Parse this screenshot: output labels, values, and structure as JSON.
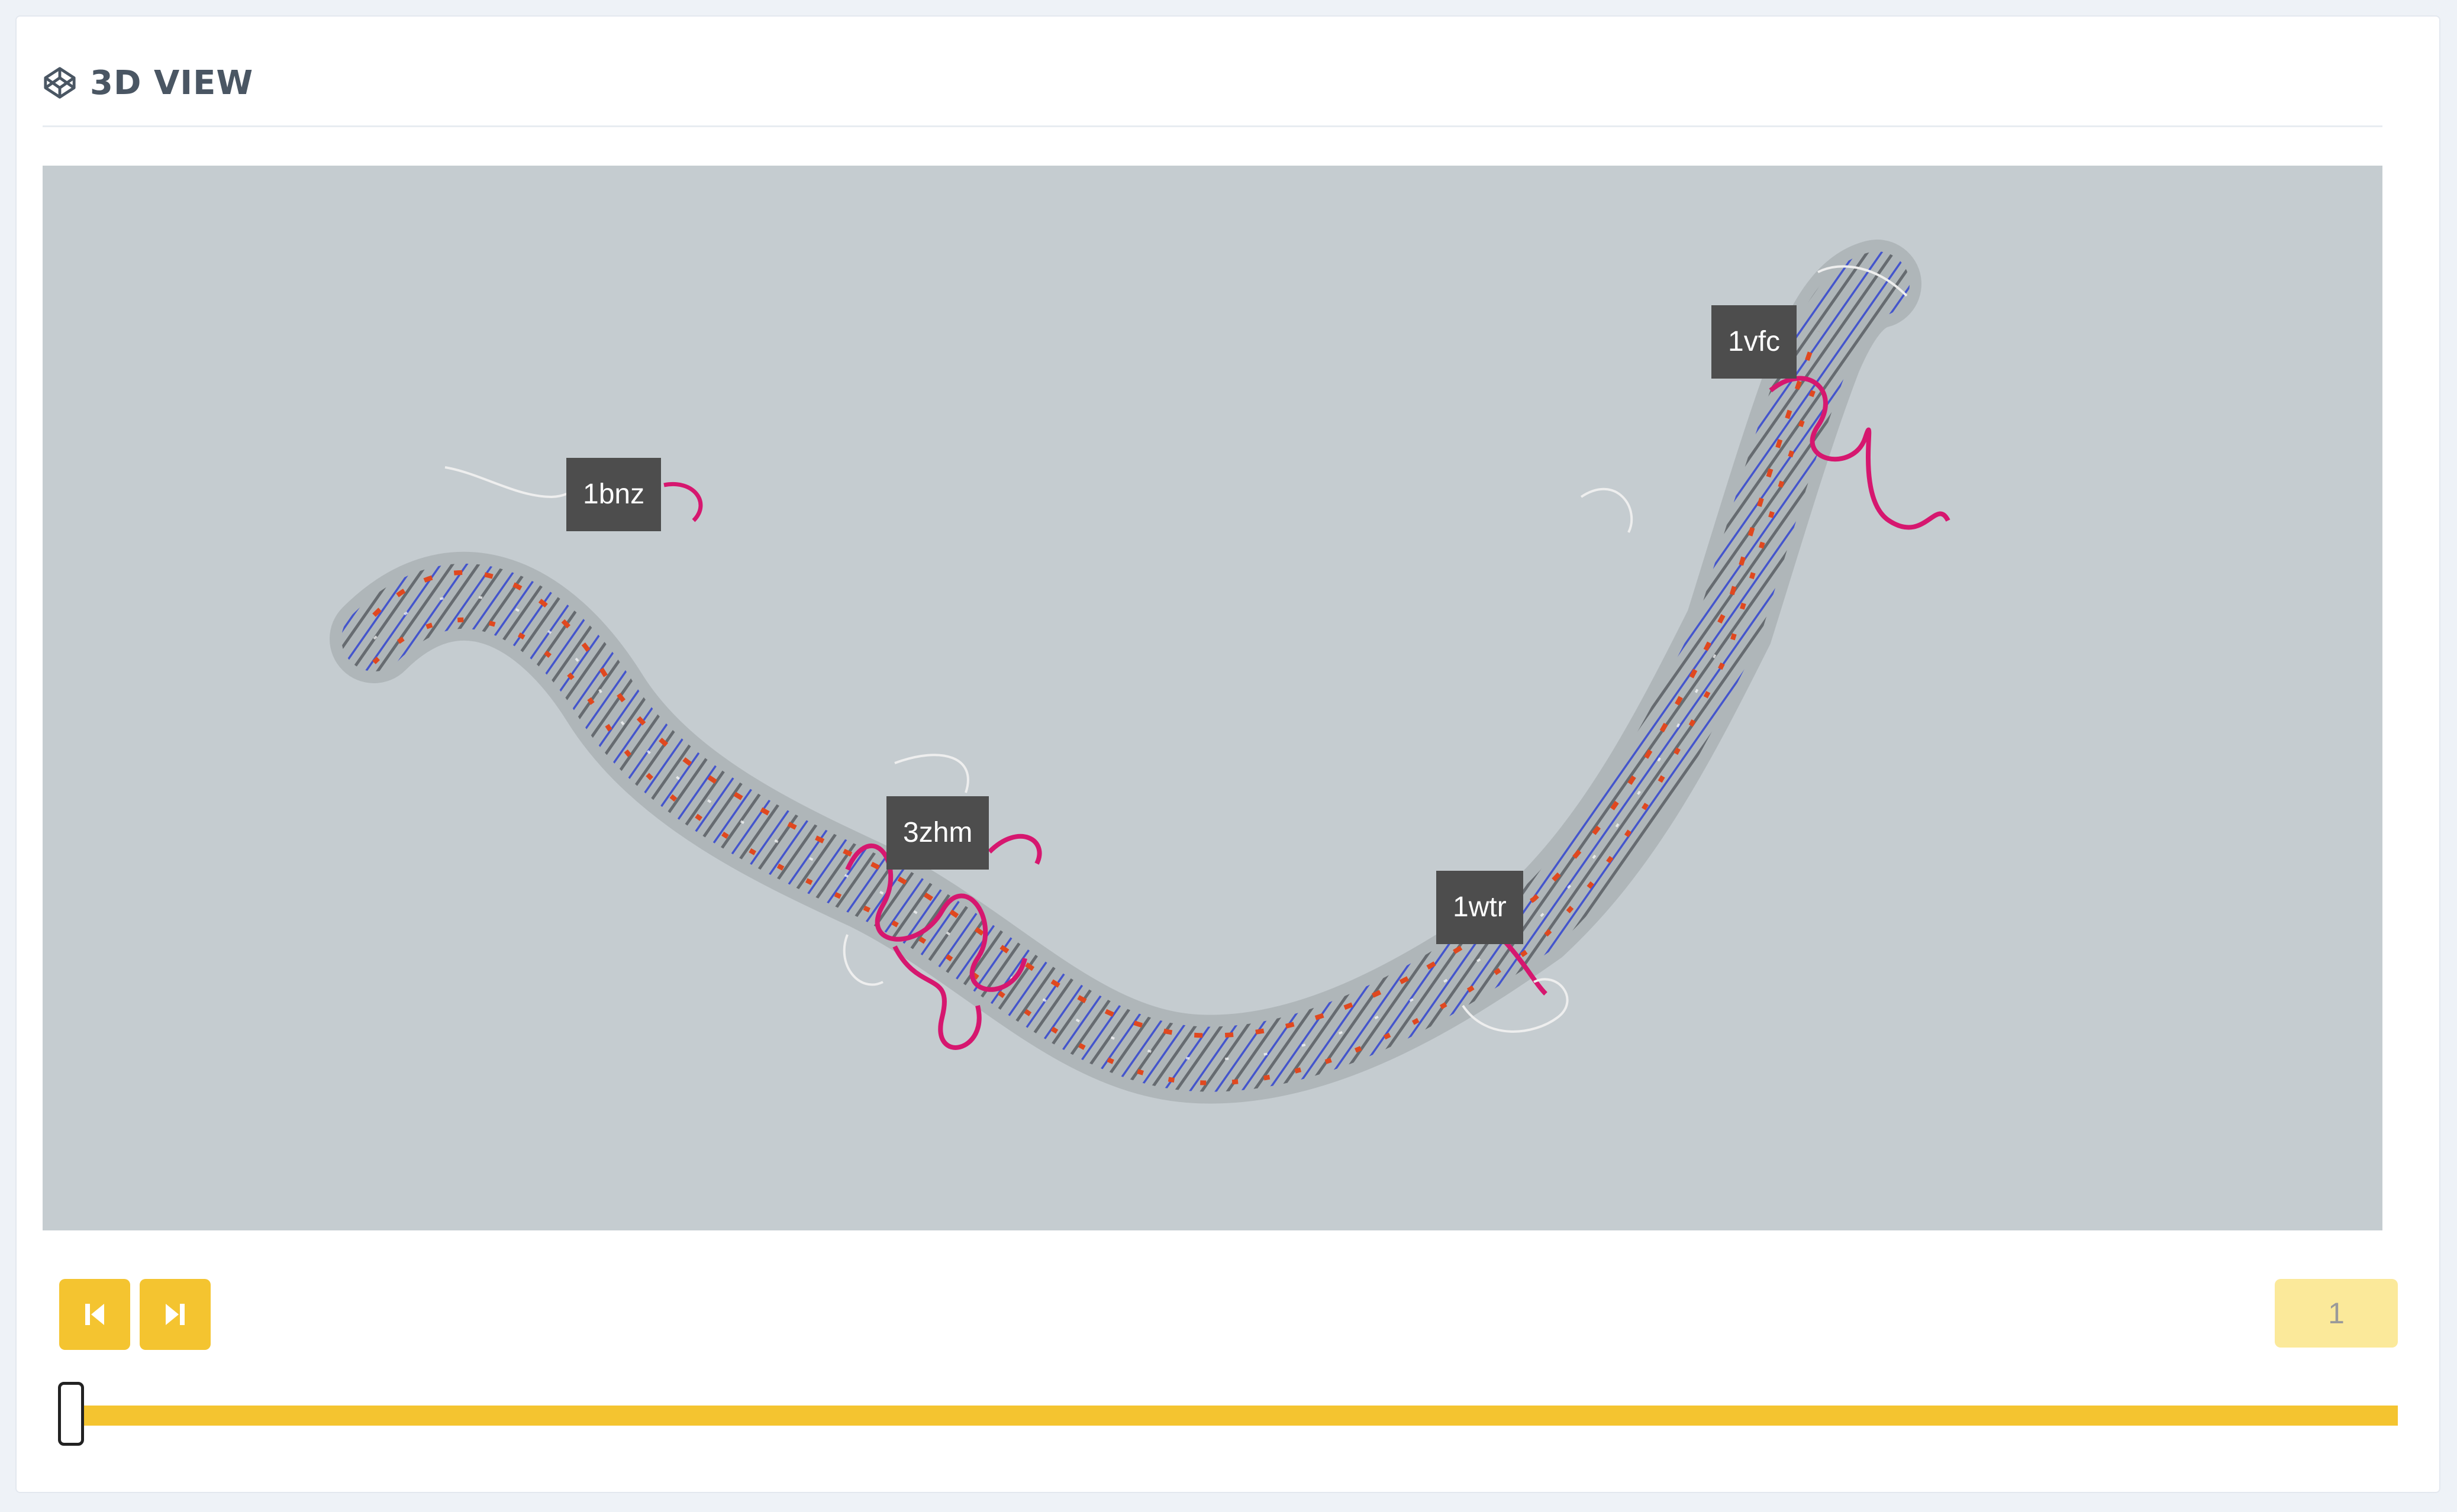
{
  "panel": {
    "title": "3D VIEW",
    "icon": "codepen-cube-icon"
  },
  "viewer": {
    "background": "#c5ccd0",
    "labels": [
      "1bnz",
      "3zhm",
      "1wtr",
      "1vfc"
    ]
  },
  "controls": {
    "prev_icon": "skip-back-icon",
    "next_icon": "skip-forward-icon",
    "frame_value": "1",
    "accent": "#f4c430",
    "slider_position": 0
  }
}
